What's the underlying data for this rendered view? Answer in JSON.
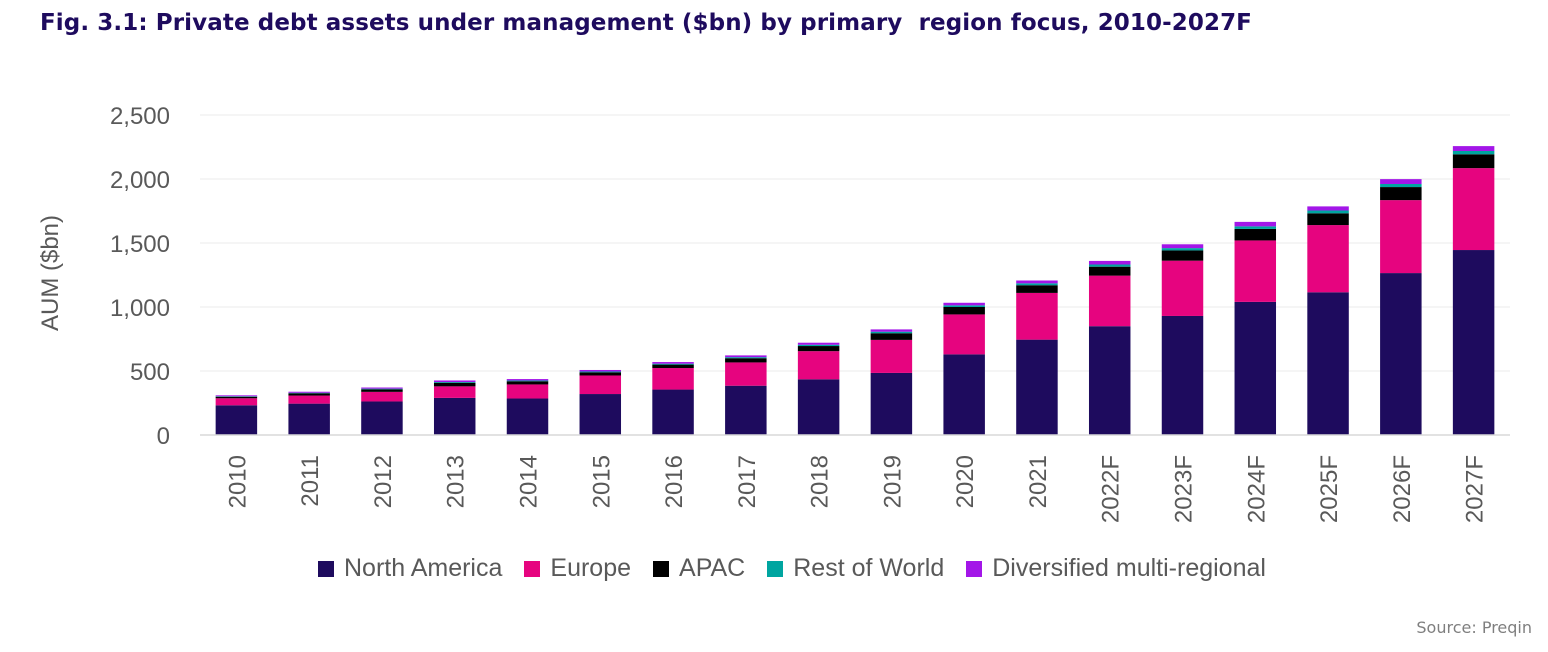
{
  "chart_data": {
    "type": "bar",
    "stacked": true,
    "title": "Fig. 3.1: Private debt assets under management ($bn) by primary  region focus, 2010-2027F",
    "xlabel": "",
    "ylabel": "AUM ($bn)",
    "ylim": [
      0,
      2500
    ],
    "yticks": [
      "0",
      "500",
      "1,000",
      "1,500",
      "2,000",
      "2,500"
    ],
    "ytick_values": [
      0,
      500,
      1000,
      1500,
      2000,
      2500
    ],
    "grid": true,
    "legend_position": "bottom",
    "categories": [
      "2010",
      "2011",
      "2012",
      "2013",
      "2014",
      "2015",
      "2016",
      "2017",
      "2018",
      "2019",
      "2020",
      "2021",
      "2022F",
      "2023F",
      "2024F",
      "2025F",
      "2026F",
      "2027F"
    ],
    "series": [
      {
        "name": "North America",
        "color": "#1e0b5e",
        "values": [
          232,
          245,
          262,
          290,
          285,
          320,
          355,
          385,
          435,
          485,
          630,
          745,
          850,
          930,
          1040,
          1115,
          1265,
          1445
        ]
      },
      {
        "name": "Europe",
        "color": "#e6047f",
        "values": [
          55,
          63,
          75,
          90,
          110,
          145,
          168,
          182,
          220,
          258,
          312,
          365,
          395,
          432,
          480,
          525,
          570,
          640
        ]
      },
      {
        "name": "APAC",
        "color": "#000000",
        "values": [
          12,
          18,
          20,
          28,
          25,
          25,
          27,
          33,
          40,
          52,
          58,
          60,
          70,
          80,
          90,
          92,
          102,
          108
        ]
      },
      {
        "name": "Rest of World",
        "color": "#00a5a0",
        "values": [
          4,
          4,
          5,
          6,
          6,
          6,
          7,
          8,
          10,
          12,
          13,
          15,
          17,
          18,
          20,
          22,
          24,
          26
        ]
      },
      {
        "name": "Diversified multi-regional",
        "color": "#a316e8",
        "values": [
          7,
          8,
          9,
          12,
          11,
          12,
          13,
          14,
          16,
          18,
          20,
          22,
          28,
          30,
          35,
          32,
          38,
          38
        ]
      }
    ]
  },
  "source": "Source: Preqin"
}
